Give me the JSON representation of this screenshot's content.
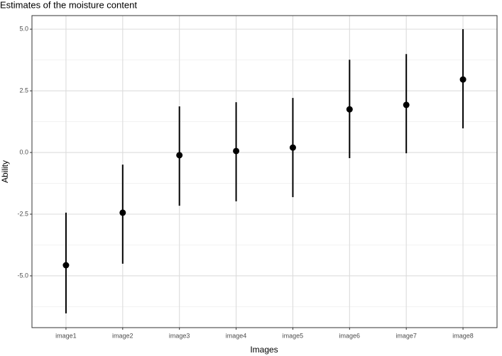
{
  "chart_data": {
    "type": "pointrange",
    "title": "Estimates of the moisture content",
    "x_label": "Images",
    "y_label": "Ability",
    "categories": [
      "image1",
      "image2",
      "image3",
      "image4",
      "image5",
      "image6",
      "image7",
      "image8"
    ],
    "values": [
      -4.57,
      -2.44,
      -0.11,
      0.06,
      0.2,
      1.75,
      1.93,
      2.96
    ],
    "lower": [
      -6.52,
      -4.51,
      -2.16,
      -1.98,
      -1.81,
      -0.23,
      -0.03,
      0.98
    ],
    "upper": [
      -2.44,
      -0.49,
      1.87,
      2.04,
      2.21,
      3.76,
      3.99,
      5.0
    ],
    "color": "#000000",
    "ylim": [
      -7.1,
      5.55
    ],
    "yticks": [
      {
        "value": -5,
        "label": "-5.0"
      },
      {
        "value": -2.5,
        "label": "-2.5"
      },
      {
        "value": 0,
        "label": "0.0"
      },
      {
        "value": 2.5,
        "label": "2.5"
      },
      {
        "value": 5,
        "label": "5.0"
      }
    ],
    "yminor": [
      -6.25,
      -3.75,
      -1.25,
      1.25,
      3.75
    ],
    "grid": true
  }
}
